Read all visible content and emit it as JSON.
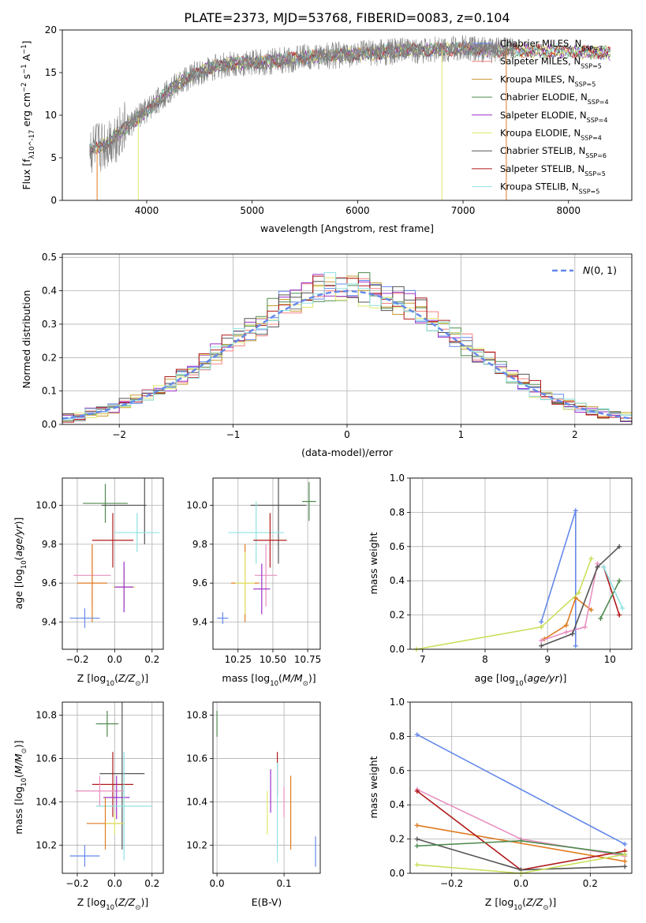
{
  "figure_title": "PLATE=2373, MJD=53768, FIBERID=0083, z=0.104",
  "colors": {
    "chabrier_miles": "#6488ea",
    "salpeter_miles": "#f48080",
    "kroupa_miles": "#c89a32",
    "chabrier_elodie": "#4f8a4f",
    "salpeter_elodie": "#9b30c8",
    "kroupa_elodie": "#dfe86a",
    "chabrier_stelib": "#555555",
    "salpeter_stelib": "#b01a1a",
    "kroupa_stelib": "#8fe2e2",
    "data": "#808080",
    "orange": "#e07b20",
    "green_yellow": "#c8e05a",
    "pink": "#e890c0"
  },
  "chart_data": [
    {
      "id": "spectrum",
      "type": "line",
      "xlabel": "wavelength [Angstrom, rest frame]",
      "ylabel": "Flux [f_λ10^-17 erg cm^-2 s^-1 A^-1]",
      "xlim": [
        3200,
        8600
      ],
      "ylim": [
        0,
        20
      ],
      "xticks": [
        4000,
        5000,
        6000,
        7000,
        8000
      ],
      "yticks": [
        0,
        5,
        10,
        15,
        20
      ],
      "continuum_x": [
        3450,
        3600,
        3800,
        4000,
        4200,
        4400,
        4600,
        4800,
        5000,
        5200,
        5500,
        6000,
        6500,
        7000,
        7500,
        8000,
        8400
      ],
      "continuum_y": [
        5.8,
        6.5,
        8.5,
        10.5,
        12.8,
        14.5,
        15.5,
        16.0,
        16.2,
        16.3,
        16.8,
        17.2,
        17.6,
        17.8,
        17.6,
        17.5,
        17.3
      ],
      "legend_position": "upper-right",
      "legend": [
        {
          "label": "Chabrier MILES, N_SSP=3",
          "color": "#6488ea"
        },
        {
          "label": "Salpeter MILES, N_SSP=5",
          "color": "#f48080"
        },
        {
          "label": "Kroupa MILES, N_SSP=5",
          "color": "#c89a32"
        },
        {
          "label": "Chabrier ELODIE, N_SSP=4",
          "color": "#4f8a4f"
        },
        {
          "label": "Salpeter ELODIE, N_SSP=4",
          "color": "#9b30c8"
        },
        {
          "label": "Kroupa ELODIE, N_SSP=4",
          "color": "#dfe86a"
        },
        {
          "label": "Chabrier STELIB, N_SSP=6",
          "color": "#555555"
        },
        {
          "label": "Salpeter STELIB, N_SSP=5",
          "color": "#b01a1a"
        },
        {
          "label": "Kroupa STELIB, N_SSP=5",
          "color": "#8fe2e2"
        }
      ]
    },
    {
      "id": "residuals",
      "type": "bar",
      "xlabel": "(data-model)/error",
      "ylabel": "Normed distribution",
      "xlim": [
        -2.5,
        2.5
      ],
      "ylim": [
        0,
        0.51
      ],
      "xticks": [
        -2,
        -1,
        0,
        1,
        2
      ],
      "yticks": [
        0.0,
        0.1,
        0.2,
        0.3,
        0.4,
        0.5
      ],
      "grid": true,
      "legend": [
        {
          "label": "N(0,1)",
          "color": "#6488ea"
        }
      ],
      "legend_position": "upper-right"
    },
    {
      "id": "age_vs_Z",
      "type": "scatter",
      "xlabel": "Z [log10(Z/Z☉)]",
      "ylabel": "age [log10(age/yr)]",
      "xlim": [
        -0.28,
        0.26
      ],
      "ylim": [
        9.26,
        10.14
      ],
      "xticks": [
        -0.2,
        0.0,
        0.2
      ],
      "yticks": [
        9.4,
        9.6,
        9.8,
        10.0
      ],
      "grid": true,
      "points": [
        {
          "x": -0.05,
          "y": 10.01,
          "xerr": 0.12,
          "yerr": 0.1,
          "color": "#4f8a4f"
        },
        {
          "x": 0.05,
          "y": 10.0,
          "xerr": 0.12,
          "yerr": 0.0,
          "color": "#555555"
        },
        {
          "x": 0.16,
          "y": 10.0,
          "xerr": 0.0,
          "yerr": 0.2,
          "color": "#555555"
        },
        {
          "x": 0.12,
          "y": 9.86,
          "xerr": 0.12,
          "yerr": 0.1,
          "color": "#8fe2e2"
        },
        {
          "x": -0.01,
          "y": 9.82,
          "xerr": 0.11,
          "yerr": 0.14,
          "color": "#b01a1a"
        },
        {
          "x": -0.12,
          "y": 9.64,
          "xerr": 0.1,
          "yerr": 0.16,
          "color": "#e890c0"
        },
        {
          "x": -0.12,
          "y": 9.6,
          "xerr": 0.08,
          "yerr": 0.2,
          "color": "#e07b20"
        },
        {
          "x": 0.05,
          "y": 9.58,
          "xerr": 0.06,
          "yerr": 0.1,
          "color": "#dfe86a"
        },
        {
          "x": 0.05,
          "y": 9.58,
          "xerr": 0.05,
          "yerr": 0.13,
          "color": "#9b30c8"
        },
        {
          "x": -0.16,
          "y": 9.42,
          "xerr": 0.08,
          "yerr": 0.05,
          "color": "#6488ea"
        }
      ]
    },
    {
      "id": "age_vs_mass",
      "type": "scatter",
      "xlabel": "mass [log10(M/M☉)]",
      "xlim": [
        10.07,
        10.84
      ],
      "ylim": [
        9.26,
        10.14
      ],
      "xticks": [
        10.25,
        10.5,
        10.75
      ],
      "yticks": [
        9.4,
        9.6,
        9.8,
        10.0
      ],
      "grid": true,
      "points": [
        {
          "x": 10.76,
          "y": 10.02,
          "xerr": 0.05,
          "yerr": 0.1,
          "color": "#4f8a4f"
        },
        {
          "x": 10.54,
          "y": 10.0,
          "xerr": 0.2,
          "yerr": 0.3,
          "color": "#555555"
        },
        {
          "x": 10.38,
          "y": 9.86,
          "xerr": 0.2,
          "yerr": 0.16,
          "color": "#8fe2e2"
        },
        {
          "x": 10.48,
          "y": 9.82,
          "xerr": 0.12,
          "yerr": 0.14,
          "color": "#b01a1a"
        },
        {
          "x": 10.45,
          "y": 9.64,
          "xerr": 0.08,
          "yerr": 0.16,
          "color": "#e890c0"
        },
        {
          "x": 10.3,
          "y": 9.6,
          "xerr": 0.1,
          "yerr": 0.2,
          "color": "#e07b20"
        },
        {
          "x": 10.3,
          "y": 9.6,
          "xerr": 0.07,
          "yerr": 0.16,
          "color": "#dfe86a"
        },
        {
          "x": 10.42,
          "y": 9.57,
          "xerr": 0.06,
          "yerr": 0.13,
          "color": "#9b30c8"
        },
        {
          "x": 10.14,
          "y": 9.42,
          "xerr": 0.04,
          "yerr": 0.03,
          "color": "#6488ea"
        }
      ]
    },
    {
      "id": "weight_vs_age",
      "type": "line",
      "xlabel": "age [log10(age/yr)]",
      "ylabel": "mass weight",
      "xlim": [
        6.8,
        10.35
      ],
      "ylim": [
        0,
        1
      ],
      "xticks": [
        7,
        8,
        9,
        10
      ],
      "yticks": [
        0.0,
        0.2,
        0.4,
        0.6,
        0.8,
        1.0
      ],
      "grid": true,
      "series": [
        {
          "color": "#6488ea",
          "x": [
            8.9,
            9.45,
            9.45
          ],
          "y": [
            0.16,
            0.81,
            0.02
          ]
        },
        {
          "color": "#e07b20",
          "x": [
            8.95,
            9.3,
            9.45,
            9.7
          ],
          "y": [
            0.06,
            0.14,
            0.3,
            0.23
          ]
        },
        {
          "color": "#c8e05a",
          "x": [
            6.9,
            8.9,
            9.5,
            9.7
          ],
          "y": [
            0.0,
            0.13,
            0.33,
            0.53
          ]
        },
        {
          "color": "#e890c0",
          "x": [
            8.9,
            9.3,
            9.6,
            9.8
          ],
          "y": [
            0.05,
            0.1,
            0.13,
            0.5
          ]
        },
        {
          "color": "#555555",
          "x": [
            8.9,
            9.4,
            9.8,
            10.15
          ],
          "y": [
            0.02,
            0.09,
            0.48,
            0.6
          ]
        },
        {
          "color": "#b01a1a",
          "x": [
            9.9,
            10.15
          ],
          "y": [
            0.48,
            0.2
          ]
        },
        {
          "color": "#4f8a4f",
          "x": [
            9.85,
            10.15
          ],
          "y": [
            0.18,
            0.4
          ]
        },
        {
          "color": "#8fe2e2",
          "x": [
            9.9,
            10.2
          ],
          "y": [
            0.48,
            0.24
          ]
        }
      ]
    },
    {
      "id": "mass_vs_Z",
      "type": "scatter",
      "xlabel": "Z [log10(Z/Z☉)]",
      "ylabel": "mass [log10(M/M☉)]",
      "xlim": [
        -0.28,
        0.26
      ],
      "ylim": [
        10.07,
        10.86
      ],
      "xticks": [
        -0.2,
        0.0,
        0.2
      ],
      "yticks": [
        10.2,
        10.4,
        10.6,
        10.8
      ],
      "grid": true,
      "points": [
        {
          "x": -0.04,
          "y": 10.76,
          "xerr": 0.06,
          "yerr": 0.06,
          "color": "#4f8a4f"
        },
        {
          "x": 0.04,
          "y": 10.53,
          "xerr": 0.12,
          "yerr": 0.35,
          "color": "#555555"
        },
        {
          "x": -0.01,
          "y": 10.48,
          "xerr": 0.11,
          "yerr": 0.15,
          "color": "#b01a1a"
        },
        {
          "x": -0.08,
          "y": 10.45,
          "xerr": 0.13,
          "yerr": 0.07,
          "color": "#e890c0"
        },
        {
          "x": 0.01,
          "y": 10.42,
          "xerr": 0.07,
          "yerr": 0.1,
          "color": "#9b30c8"
        },
        {
          "x": 0.05,
          "y": 10.38,
          "xerr": 0.15,
          "yerr": 0.25,
          "color": "#8fe2e2"
        },
        {
          "x": -0.05,
          "y": 10.3,
          "xerr": 0.1,
          "yerr": 0.12,
          "color": "#e07b20"
        },
        {
          "x": 0.0,
          "y": 10.3,
          "xerr": 0.05,
          "yerr": 0.05,
          "color": "#dfe86a"
        },
        {
          "x": -0.16,
          "y": 10.15,
          "xerr": 0.08,
          "yerr": 0.05,
          "color": "#6488ea"
        }
      ]
    },
    {
      "id": "mass_vs_ebv",
      "type": "scatter",
      "xlabel": "E(B-V)",
      "xlim": [
        -0.006,
        0.154
      ],
      "ylim": [
        10.07,
        10.86
      ],
      "xticks": [
        0.0,
        0.1
      ],
      "yticks": [
        10.2,
        10.4,
        10.6,
        10.8
      ],
      "grid": true,
      "points": [
        {
          "x": 0.0,
          "y": 10.76,
          "xerr": 0.0,
          "yerr": 0.06,
          "color": "#4f8a4f"
        },
        {
          "x": 0.09,
          "y": 10.53,
          "xerr": 0.0,
          "yerr": 0.1,
          "color": "#b01a1a"
        },
        {
          "x": 0.08,
          "y": 10.45,
          "xerr": 0.0,
          "yerr": 0.1,
          "color": "#9b30c8"
        },
        {
          "x": 0.1,
          "y": 10.4,
          "xerr": 0.0,
          "yerr": 0.07,
          "color": "#e890c0"
        },
        {
          "x": 0.11,
          "y": 10.35,
          "xerr": 0.0,
          "yerr": 0.17,
          "color": "#e07b20"
        },
        {
          "x": 0.09,
          "y": 10.35,
          "xerr": 0.0,
          "yerr": 0.23,
          "color": "#8fe2e2"
        },
        {
          "x": 0.075,
          "y": 10.35,
          "xerr": 0.0,
          "yerr": 0.1,
          "color": "#dfe86a"
        },
        {
          "x": 0.147,
          "y": 10.17,
          "xerr": 0.0,
          "yerr": 0.07,
          "color": "#6488ea"
        }
      ]
    },
    {
      "id": "weight_vs_Z",
      "type": "line",
      "xlabel": "Z [log10(Z/Z☉)]",
      "ylabel": "mass weight",
      "xlim": [
        -0.32,
        0.32
      ],
      "ylim": [
        0,
        1
      ],
      "xticks": [
        -0.2,
        0.0,
        0.2
      ],
      "yticks": [
        0.0,
        0.2,
        0.4,
        0.6,
        0.8,
        1.0
      ],
      "grid": true,
      "series": [
        {
          "color": "#6488ea",
          "x": [
            -0.3,
            0.3
          ],
          "y": [
            0.81,
            0.17
          ]
        },
        {
          "color": "#e07b20",
          "x": [
            -0.3,
            0.3
          ],
          "y": [
            0.28,
            0.07
          ]
        },
        {
          "color": "#e890c0",
          "x": [
            -0.3,
            0.0,
            0.3
          ],
          "y": [
            0.49,
            0.2,
            0.1
          ]
        },
        {
          "color": "#b01a1a",
          "x": [
            -0.3,
            0.0,
            0.3
          ],
          "y": [
            0.48,
            0.02,
            0.13
          ]
        },
        {
          "color": "#555555",
          "x": [
            -0.3,
            0.0,
            0.3
          ],
          "y": [
            0.2,
            0.02,
            0.04
          ]
        },
        {
          "color": "#4f8a4f",
          "x": [
            -0.3,
            0.0,
            0.3
          ],
          "y": [
            0.16,
            0.19,
            0.11
          ]
        },
        {
          "color": "#c8e05a",
          "x": [
            -0.3,
            0.0,
            0.3
          ],
          "y": [
            0.05,
            0.0,
            0.11
          ]
        }
      ]
    }
  ]
}
